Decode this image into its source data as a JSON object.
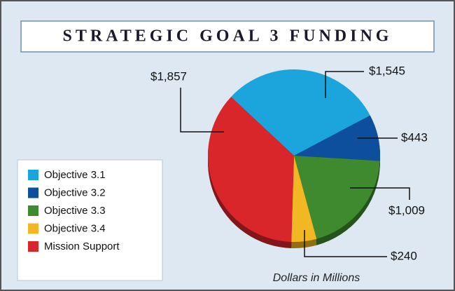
{
  "chart_data": {
    "type": "pie",
    "title": "STRATEGIC GOAL 3 FUNDING",
    "categories": [
      "Objective 3.1",
      "Objective 3.2",
      "Objective 3.3",
      "Objective 3.4",
      "Mission Support"
    ],
    "values": [
      1545,
      443,
      1009,
      240,
      1857
    ],
    "value_labels": [
      "$1,545",
      "$443",
      "$1,009",
      "$240",
      "$1,857"
    ],
    "colors": [
      "#1ba5dc",
      "#0d4f9c",
      "#3f8a2e",
      "#f2b824",
      "#d9262b"
    ],
    "annotation": "Dollars in Millions",
    "legend": "bottom-left"
  }
}
